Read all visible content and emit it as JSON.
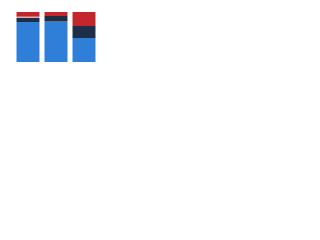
{
  "chart_data": {
    "type": "stacked-bar",
    "categories": [
      null,
      null,
      null
    ],
    "series": [
      {
        "color": "#2f7fd8",
        "values": [
          80,
          82,
          48
        ]
      },
      {
        "color": "#1d2e48",
        "values": [
          8,
          10,
          24
        ]
      },
      {
        "color": "#b9bcc0",
        "values": [
          3,
          0,
          0
        ]
      },
      {
        "color": "#c3272d",
        "values": [
          9,
          8,
          28
        ]
      }
    ],
    "ylim": [
      0,
      100
    ]
  }
}
